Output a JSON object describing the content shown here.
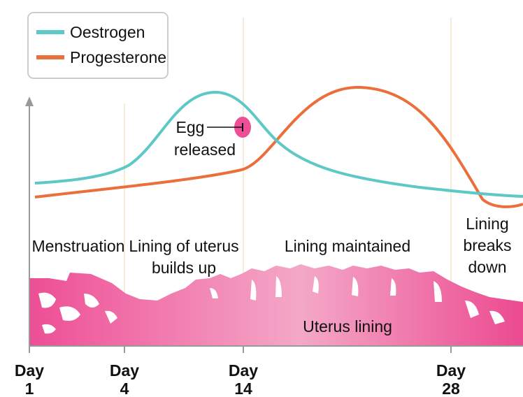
{
  "legend": [
    {
      "label": "Oestrogen",
      "color": "#5ec8c6"
    },
    {
      "label": "Progesterone",
      "color": "#eb6f3c"
    }
  ],
  "annotation": [
    "Egg",
    "released"
  ],
  "phases": [
    [
      "Menstruation"
    ],
    [
      "Lining of uterus",
      "builds up"
    ],
    [
      "Lining maintained"
    ],
    [
      "Lining",
      "breaks",
      "down"
    ]
  ],
  "uterus_label": "Uterus lining",
  "days": [
    [
      "Day",
      "1"
    ],
    [
      "Day",
      "4"
    ],
    [
      "Day",
      "14"
    ],
    [
      "Day",
      "28"
    ]
  ]
}
